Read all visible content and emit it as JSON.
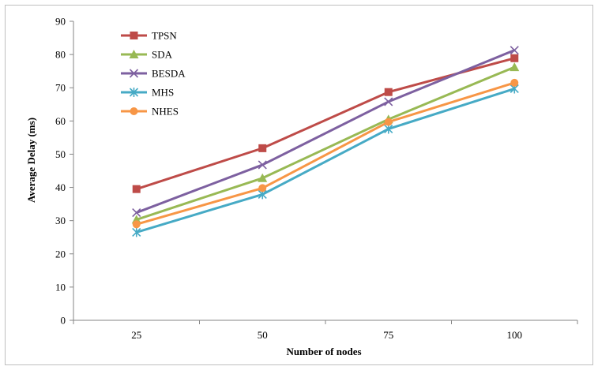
{
  "chart_data": {
    "type": "line",
    "title": "",
    "xlabel": "Number  of nodes",
    "ylabel": "Average Delay (ms)",
    "categories": [
      "25",
      "50",
      "75",
      "100"
    ],
    "ylim": [
      0,
      90
    ],
    "yticks": [
      0,
      10,
      20,
      30,
      40,
      50,
      60,
      70,
      80,
      90
    ],
    "grid": false,
    "legend_position": "top-left",
    "series": [
      {
        "name": "TPSN",
        "values": [
          39.5,
          51.8,
          68.7,
          78.9
        ],
        "color": "#BE4B48",
        "marker": "square"
      },
      {
        "name": "SDA",
        "values": [
          30.3,
          42.8,
          60.5,
          76.2
        ],
        "color": "#98B954",
        "marker": "triangle"
      },
      {
        "name": "BESDA",
        "values": [
          32.4,
          46.8,
          65.8,
          81.3
        ],
        "color": "#7D60A0",
        "marker": "x"
      },
      {
        "name": "MHS",
        "values": [
          26.5,
          37.9,
          57.6,
          69.7
        ],
        "color": "#46AAC5",
        "marker": "star"
      },
      {
        "name": "NHES",
        "values": [
          28.9,
          39.8,
          59.7,
          71.5
        ],
        "color": "#F79646",
        "marker": "circle"
      }
    ]
  }
}
